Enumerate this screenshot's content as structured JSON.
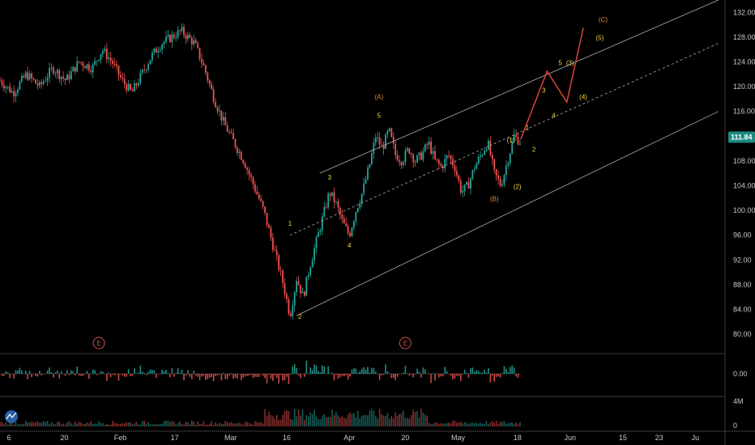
{
  "chart_data": {
    "type": "candlestick",
    "x_ticks": [
      "6",
      "20",
      "Feb",
      "17",
      "Mar",
      "16",
      "Apr",
      "20",
      "May",
      "18",
      "Jun",
      "15",
      "23",
      "Ju"
    ],
    "y_ticks": [
      "132.00",
      "128.00",
      "124.00",
      "120.00",
      "116.00",
      "112.00",
      "108.00",
      "104.00",
      "100.00",
      "96.00",
      "92.00",
      "88.00",
      "84.00",
      "80.00"
    ],
    "ylim": [
      77,
      134
    ],
    "current_price": "111.84",
    "price_path": [
      [
        0,
        121
      ],
      [
        4,
        119
      ],
      [
        8,
        122
      ],
      [
        12,
        120
      ],
      [
        16,
        123
      ],
      [
        20,
        121
      ],
      [
        24,
        124
      ],
      [
        28,
        123
      ],
      [
        31,
        126
      ],
      [
        34,
        124
      ],
      [
        37,
        121
      ],
      [
        40,
        119
      ],
      [
        43,
        122
      ],
      [
        46,
        125
      ],
      [
        49,
        127
      ],
      [
        52,
        128
      ],
      [
        55,
        129
      ],
      [
        57,
        128
      ],
      [
        59,
        127
      ],
      [
        62,
        123
      ],
      [
        65,
        118
      ],
      [
        68,
        114
      ],
      [
        71,
        111
      ],
      [
        74,
        108
      ],
      [
        77,
        104
      ],
      [
        80,
        100
      ],
      [
        82,
        96
      ],
      [
        84,
        92
      ],
      [
        86,
        88
      ],
      [
        88,
        83
      ],
      [
        90,
        89
      ],
      [
        92,
        86
      ],
      [
        94,
        91
      ],
      [
        96,
        95
      ],
      [
        98,
        99
      ],
      [
        100,
        103
      ],
      [
        102,
        101
      ],
      [
        104,
        98
      ],
      [
        106,
        96
      ],
      [
        108,
        100
      ],
      [
        110,
        103
      ],
      [
        112,
        107
      ],
      [
        114,
        112
      ],
      [
        116,
        110
      ],
      [
        118,
        113
      ],
      [
        120,
        109
      ],
      [
        122,
        108
      ],
      [
        124,
        110
      ],
      [
        126,
        108
      ],
      [
        128,
        109
      ],
      [
        130,
        111
      ],
      [
        132,
        108
      ],
      [
        134,
        107
      ],
      [
        136,
        109
      ],
      [
        138,
        107
      ],
      [
        140,
        103
      ],
      [
        142,
        104
      ],
      [
        144,
        107
      ],
      [
        146,
        109
      ],
      [
        148,
        111
      ],
      [
        150,
        106
      ],
      [
        152,
        104
      ],
      [
        154,
        108
      ],
      [
        156,
        112
      ],
      [
        158,
        111
      ]
    ],
    "projection": {
      "points": [
        [
          158,
          111.5
        ],
        [
          166,
          122.5
        ],
        [
          172,
          117.5
        ],
        [
          177,
          129.5
        ]
      ]
    },
    "channel": {
      "upper": [
        [
          97,
          106
        ],
        [
          218,
          134
        ]
      ],
      "mid": [
        [
          88,
          96
        ],
        [
          218,
          127
        ]
      ],
      "lower": [
        [
          90,
          83
        ],
        [
          218,
          116
        ]
      ]
    },
    "wave_labels": [
      {
        "text": "1",
        "x": 88,
        "y": 97.5,
        "color": "yellow"
      },
      {
        "text": "2",
        "x": 91,
        "y": 82.5,
        "color": "yellow"
      },
      {
        "text": "3",
        "x": 100,
        "y": 105,
        "color": "yellow"
      },
      {
        "text": "4",
        "x": 106,
        "y": 94,
        "color": "yellow"
      },
      {
        "text": "5",
        "x": 115,
        "y": 115,
        "color": "yellow"
      },
      {
        "text": "(A)",
        "x": 115,
        "y": 118,
        "color": "orange"
      },
      {
        "text": "(B)",
        "x": 150,
        "y": 101.5,
        "color": "orange"
      },
      {
        "text": "(1)",
        "x": 155,
        "y": 111,
        "color": "yellow"
      },
      {
        "text": "(2)",
        "x": 157,
        "y": 103.5,
        "color": "yellow"
      },
      {
        "text": "1",
        "x": 160,
        "y": 113,
        "color": "yellow"
      },
      {
        "text": "2",
        "x": 162,
        "y": 109.5,
        "color": "yellow"
      },
      {
        "text": "3",
        "x": 165,
        "y": 119,
        "color": "yellow"
      },
      {
        "text": "4",
        "x": 168,
        "y": 115,
        "color": "yellow"
      },
      {
        "text": "5",
        "x": 170,
        "y": 123.5,
        "color": "yellow"
      },
      {
        "text": "(3)",
        "x": 173,
        "y": 123.5,
        "color": "yellow"
      },
      {
        "text": "(4)",
        "x": 177,
        "y": 118,
        "color": "yellow"
      },
      {
        "text": "(5)",
        "x": 182,
        "y": 127.5,
        "color": "yellow"
      },
      {
        "text": "(C)",
        "x": 183,
        "y": 130.5,
        "color": "orange"
      }
    ],
    "events": [
      {
        "text": "E",
        "x": 30
      },
      {
        "text": "E",
        "x": 123
      }
    ],
    "oscillator": {
      "zero_label": "0.00"
    },
    "volume": {
      "max_label": "4M",
      "zero_label": "0"
    },
    "grid": false
  },
  "colors": {
    "background": "#000000",
    "up": "#26a69a",
    "down": "#ef5350",
    "projection": "#d9443a",
    "channel": "#b0b0b0",
    "wave_yellow": "#f2d64a",
    "wave_orange": "#e08a3c",
    "price_badge": "#1f8a80",
    "event": "#d05050"
  }
}
